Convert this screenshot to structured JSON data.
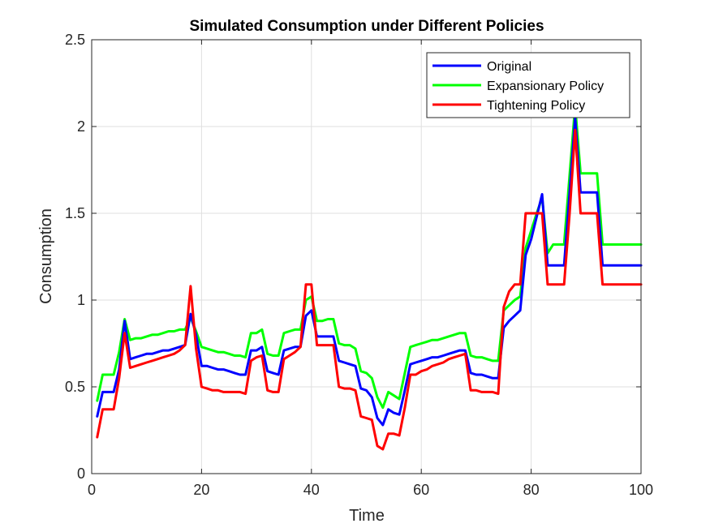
{
  "chart_data": {
    "type": "line",
    "title": "Simulated Consumption under Different Policies",
    "xlabel": "Time",
    "ylabel": "Consumption",
    "xlim": [
      0,
      100
    ],
    "ylim": [
      0,
      2.5
    ],
    "xticks": [
      "0",
      "20",
      "40",
      "60",
      "80",
      "100"
    ],
    "yticks": [
      "0",
      "0.5",
      "1",
      "1.5",
      "2",
      "2.5"
    ],
    "grid": true,
    "legend_position": "top-right",
    "x": [
      1,
      2,
      3,
      4,
      5,
      6,
      7,
      8,
      9,
      10,
      11,
      12,
      13,
      14,
      15,
      16,
      17,
      18,
      19,
      20,
      21,
      22,
      23,
      24,
      25,
      26,
      27,
      28,
      29,
      30,
      31,
      32,
      33,
      34,
      35,
      36,
      37,
      38,
      39,
      40,
      41,
      42,
      43,
      44,
      45,
      46,
      47,
      48,
      49,
      50,
      51,
      52,
      53,
      54,
      55,
      56,
      57,
      58,
      59,
      60,
      61,
      62,
      63,
      64,
      65,
      66,
      67,
      68,
      69,
      70,
      71,
      72,
      73,
      74,
      75,
      76,
      77,
      78,
      79,
      80,
      81,
      82,
      83,
      84,
      85,
      86,
      87,
      88,
      89,
      90,
      91,
      92,
      93,
      94,
      95,
      96,
      97,
      98,
      99,
      100
    ],
    "series": [
      {
        "name": "Original",
        "color": "#0000ff",
        "values": [
          0.33,
          0.47,
          0.47,
          0.47,
          0.6,
          0.88,
          0.66,
          0.67,
          0.68,
          0.69,
          0.69,
          0.7,
          0.71,
          0.71,
          0.72,
          0.73,
          0.74,
          0.92,
          0.8,
          0.62,
          0.62,
          0.61,
          0.6,
          0.6,
          0.59,
          0.58,
          0.57,
          0.57,
          0.71,
          0.71,
          0.73,
          0.59,
          0.58,
          0.57,
          0.71,
          0.72,
          0.73,
          0.73,
          0.91,
          0.94,
          0.79,
          0.79,
          0.79,
          0.79,
          0.65,
          0.64,
          0.63,
          0.62,
          0.49,
          0.48,
          0.44,
          0.32,
          0.28,
          0.37,
          0.35,
          0.34,
          0.48,
          0.63,
          0.64,
          0.65,
          0.66,
          0.67,
          0.67,
          0.68,
          0.69,
          0.7,
          0.71,
          0.71,
          0.58,
          0.57,
          0.57,
          0.56,
          0.55,
          0.55,
          0.84,
          0.88,
          0.91,
          0.94,
          1.26,
          1.35,
          1.48,
          1.61,
          1.2,
          1.2,
          1.2,
          1.2,
          1.62,
          2.05,
          1.62,
          1.62,
          1.62,
          1.62,
          1.2,
          1.2,
          1.2,
          1.2,
          1.2,
          1.2,
          1.2,
          1.2
        ]
      },
      {
        "name": "Expansionary Policy",
        "color": "#00ff00",
        "values": [
          0.42,
          0.57,
          0.57,
          0.57,
          0.7,
          0.89,
          0.77,
          0.78,
          0.78,
          0.79,
          0.8,
          0.8,
          0.81,
          0.82,
          0.82,
          0.83,
          0.83,
          0.9,
          0.82,
          0.73,
          0.72,
          0.71,
          0.7,
          0.7,
          0.69,
          0.68,
          0.68,
          0.67,
          0.81,
          0.81,
          0.83,
          0.69,
          0.68,
          0.68,
          0.81,
          0.82,
          0.83,
          0.83,
          1.0,
          1.02,
          0.88,
          0.88,
          0.89,
          0.89,
          0.75,
          0.74,
          0.74,
          0.72,
          0.59,
          0.58,
          0.55,
          0.44,
          0.38,
          0.47,
          0.45,
          0.43,
          0.58,
          0.73,
          0.74,
          0.75,
          0.76,
          0.77,
          0.77,
          0.78,
          0.79,
          0.8,
          0.81,
          0.81,
          0.68,
          0.67,
          0.67,
          0.66,
          0.65,
          0.65,
          0.94,
          0.97,
          1.0,
          1.02,
          1.3,
          1.4,
          1.5,
          1.59,
          1.27,
          1.32,
          1.32,
          1.32,
          1.72,
          2.12,
          1.73,
          1.73,
          1.73,
          1.73,
          1.32,
          1.32,
          1.32,
          1.32,
          1.32,
          1.32,
          1.32,
          1.32
        ]
      },
      {
        "name": "Tightening Policy",
        "color": "#ff0000",
        "values": [
          0.21,
          0.37,
          0.37,
          0.37,
          0.55,
          0.81,
          0.61,
          0.62,
          0.63,
          0.64,
          0.65,
          0.66,
          0.67,
          0.68,
          0.69,
          0.71,
          0.74,
          1.08,
          0.72,
          0.5,
          0.49,
          0.48,
          0.48,
          0.47,
          0.47,
          0.47,
          0.47,
          0.46,
          0.65,
          0.67,
          0.68,
          0.48,
          0.47,
          0.47,
          0.66,
          0.68,
          0.7,
          0.73,
          1.09,
          1.09,
          0.74,
          0.74,
          0.74,
          0.74,
          0.5,
          0.49,
          0.49,
          0.48,
          0.33,
          0.32,
          0.31,
          0.16,
          0.14,
          0.23,
          0.23,
          0.22,
          0.38,
          0.57,
          0.57,
          0.59,
          0.6,
          0.62,
          0.63,
          0.64,
          0.66,
          0.67,
          0.68,
          0.69,
          0.48,
          0.48,
          0.47,
          0.47,
          0.47,
          0.46,
          0.96,
          1.05,
          1.09,
          1.09,
          1.5,
          1.5,
          1.5,
          1.5,
          1.09,
          1.09,
          1.09,
          1.09,
          1.5,
          1.98,
          1.5,
          1.5,
          1.5,
          1.5,
          1.09,
          1.09,
          1.09,
          1.09,
          1.09,
          1.09,
          1.09,
          1.09
        ]
      }
    ]
  }
}
